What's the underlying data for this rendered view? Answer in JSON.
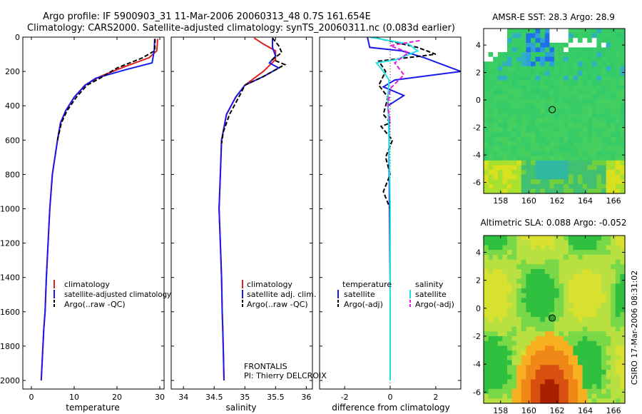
{
  "title_line1": "Argo profile: IF 5900903_31 11-Mar-2006 20060313_48 0.7S 161.654E",
  "title_line2": "Climatology: CARS2000. Satellite-adjusted climatology: synTS_20060311.nc (0.083d earlier)",
  "side_label": "CSIRO 17-Mar-2006 08:31:02",
  "colors": {
    "red": "#e02020",
    "blue": "#1a1aee",
    "black": "#000000",
    "cyan": "#22e0e0",
    "magenta": "#e020e0"
  },
  "chart_data": [
    {
      "type": "line",
      "xlabel": "temperature",
      "xlim": [
        -2,
        31
      ],
      "ylim": [
        0,
        2050
      ],
      "y_reversed": true,
      "xticks": [
        0,
        10,
        20,
        30
      ],
      "yticks": [
        0,
        200,
        400,
        600,
        800,
        1000,
        1200,
        1400,
        1600,
        1800,
        2000
      ],
      "legend": [
        "climatology",
        "satellite-adjusted climatology",
        "Argo(..raw -QC)"
      ],
      "series": [
        {
          "name": "climatology",
          "color": "red",
          "dash": "solid",
          "x": [
            29.5,
            29.3,
            27.5,
            22,
            16,
            12.5,
            10,
            8,
            6.8,
            6.1,
            5.5,
            4.9,
            4.3,
            3.9,
            3.5,
            3.2,
            2.9,
            2.6,
            2.3
          ],
          "y": [
            10,
            80,
            120,
            170,
            230,
            280,
            350,
            430,
            500,
            600,
            700,
            800,
            1000,
            1200,
            1400,
            1600,
            1700,
            1850,
            2000
          ]
        },
        {
          "name": "satellite-adjusted climatology",
          "color": "blue",
          "dash": "solid",
          "x": [
            28.8,
            28.7,
            28.2,
            22,
            15,
            12.6,
            10,
            8,
            6.8,
            6.1,
            5.5,
            4.9,
            4.3,
            3.9,
            3.5,
            3.2,
            2.9,
            2.6,
            2.3
          ],
          "y": [
            10,
            80,
            150,
            190,
            240,
            280,
            350,
            430,
            500,
            600,
            700,
            800,
            1000,
            1200,
            1400,
            1600,
            1700,
            1850,
            2000
          ]
        },
        {
          "name": "Argo(..raw -QC)",
          "color": "black",
          "dash": "dash",
          "x": [
            28.9,
            28.8,
            26,
            20,
            16,
            13,
            10.5,
            8.3,
            7,
            6.1
          ],
          "y": [
            10,
            80,
            120,
            180,
            240,
            280,
            350,
            430,
            500,
            600
          ]
        }
      ]
    },
    {
      "type": "line",
      "xlabel": "salinity",
      "xlim": [
        33.8,
        36.1
      ],
      "ylim": [
        0,
        2050
      ],
      "y_reversed": true,
      "xticks": [
        34,
        34.5,
        35,
        35.5,
        36
      ],
      "yticks": [
        0,
        200,
        400,
        600,
        800,
        1000,
        1200,
        1400,
        1600,
        1800,
        2000
      ],
      "legend": [
        "climatology",
        "satellite adj. clim.",
        "Argo(..raw -QC)"
      ],
      "annotations": [
        "FRONTALIS",
        "PI: Thierry DELCROIX"
      ],
      "series": [
        {
          "name": "climatology",
          "color": "red",
          "dash": "solid",
          "x": [
            35.15,
            35.3,
            35.5,
            35.5,
            35.3,
            35.0,
            34.85,
            34.7,
            34.62,
            34.6,
            34.58,
            34.6,
            34.62,
            34.63,
            34.64,
            34.65,
            34.66
          ],
          "y": [
            5,
            40,
            80,
            130,
            200,
            280,
            350,
            450,
            600,
            800,
            1000,
            1200,
            1400,
            1600,
            1700,
            1850,
            2000
          ]
        },
        {
          "name": "satellite adj. clim.",
          "color": "blue",
          "dash": "solid",
          "x": [
            35.45,
            35.45,
            35.5,
            35.4,
            35.55,
            35.3,
            35.0,
            34.85,
            34.7,
            34.62,
            34.6,
            34.58,
            34.6,
            34.62,
            34.63,
            34.64,
            34.65,
            34.66
          ],
          "y": [
            5,
            60,
            110,
            150,
            180,
            230,
            280,
            350,
            450,
            600,
            800,
            1000,
            1200,
            1400,
            1600,
            1700,
            1850,
            2000
          ]
        },
        {
          "name": "Argo(..raw -QC)",
          "color": "black",
          "dash": "dash",
          "x": [
            35.45,
            35.55,
            35.6,
            35.45,
            35.65,
            35.5,
            35.3,
            35.0,
            34.9,
            34.75,
            34.65,
            34.62
          ],
          "y": [
            5,
            50,
            90,
            130,
            160,
            190,
            230,
            280,
            350,
            450,
            550,
            620
          ]
        }
      ]
    },
    {
      "type": "line",
      "xlabel": "difference from climatology",
      "xlim": [
        -3.1,
        3.1
      ],
      "ylim": [
        0,
        2050
      ],
      "y_reversed": true,
      "xticks": [
        -2,
        0,
        2
      ],
      "yticks": [
        0,
        200,
        400,
        600,
        800,
        1000,
        1200,
        1400,
        1600,
        1800,
        2000
      ],
      "legend_headers": [
        "temperature",
        "salinity"
      ],
      "legend": [
        "satellite",
        "Argo(-adj)",
        "satellite",
        "Argo(-adj)"
      ],
      "series": [
        {
          "name": "satellite",
          "group": "temperature",
          "color": "blue",
          "dash": "solid",
          "x": [
            -1.0,
            -0.9,
            0.5,
            1.5,
            3.1,
            0.2,
            -0.3,
            0.6,
            -0.1,
            -0.05,
            -0.05,
            -0.03,
            0.0,
            0.0
          ],
          "y": [
            0,
            60,
            80,
            120,
            200,
            250,
            290,
            340,
            400,
            500,
            700,
            1000,
            1500,
            2000
          ]
        },
        {
          "name": "Argo(-adj)",
          "group": "temperature",
          "color": "black",
          "dash": "dash",
          "x": [
            -0.6,
            1.2,
            2.0,
            -0.5,
            -0.2,
            -0.5,
            -0.1,
            -0.3,
            0.0,
            -0.4,
            0.1,
            -0.2,
            0.0,
            -0.3,
            0.0
          ],
          "y": [
            5,
            60,
            100,
            140,
            200,
            280,
            350,
            450,
            500,
            520,
            600,
            700,
            800,
            900,
            1000
          ]
        },
        {
          "name": "satellite",
          "group": "salinity",
          "color": "cyan",
          "dash": "solid",
          "x": [
            -0.9,
            0.8,
            1.2,
            0.3,
            -0.6,
            -0.3,
            -0.05,
            -0.1,
            -0.05,
            0.0,
            0.0
          ],
          "y": [
            0,
            40,
            80,
            130,
            150,
            200,
            250,
            350,
            600,
            1000,
            2000
          ]
        },
        {
          "name": "Argo(-adj)",
          "group": "salinity",
          "color": "magenta",
          "dash": "dash",
          "x": [
            1.3,
            0.0,
            0.8,
            0.2,
            0.6,
            0.0,
            -0.1,
            0.0
          ],
          "y": [
            20,
            50,
            90,
            150,
            220,
            300,
            400,
            500
          ]
        }
      ]
    },
    {
      "type": "heatmap",
      "title": "AMSR-E SST: 28.3 Argo: 28.9",
      "xlim": [
        156.8,
        166.8
      ],
      "ylim": [
        -6.8,
        5.2
      ],
      "xticks": [
        158,
        160,
        162,
        164,
        166
      ],
      "yticks": [
        -6,
        -4,
        -2,
        0,
        2,
        4
      ],
      "marker": {
        "x": 161.654,
        "y": -0.7
      }
    },
    {
      "type": "heatmap",
      "title": "Altimetric SLA: 0.088 Argo: -0.052",
      "xlim": [
        156.8,
        166.8
      ],
      "ylim": [
        -6.8,
        5.2
      ],
      "xticks": [
        158,
        160,
        162,
        164,
        166
      ],
      "yticks": [
        -6,
        -4,
        -2,
        0,
        2,
        4
      ],
      "marker": {
        "x": 161.654,
        "y": -0.7
      }
    }
  ]
}
